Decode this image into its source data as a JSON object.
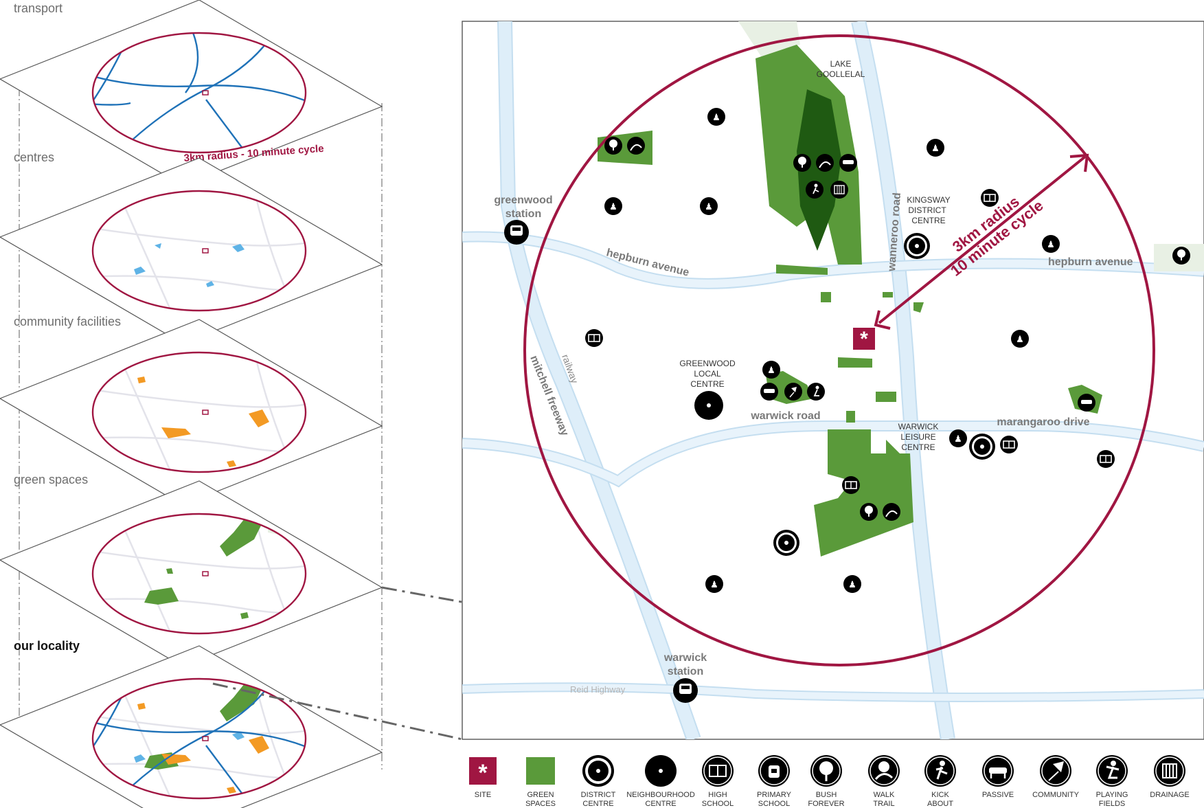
{
  "layers": {
    "transport": "transport",
    "centres": "centres",
    "community": "community facilities",
    "green": "green spaces",
    "locality": "our locality"
  },
  "mini_radius_label": "3km radius  - 10 minute cycle",
  "map": {
    "radius_line1": "3km radius",
    "radius_line2": "10 minute cycle",
    "roads": {
      "hepburn_west": "hepburn avenue",
      "hepburn_east": "hepburn avenue",
      "warwick_road": "warwick road",
      "marangaroo": "marangaroo drive",
      "wanneroo": "wanneroo road",
      "railway": "railway",
      "mitchell": "mitchell freeway",
      "reid": "Reid Highway"
    },
    "places": {
      "lake_1": "LAKE",
      "lake_2": "GOOLLELAL",
      "kingsway_1": "KINGSWAY",
      "kingsway_2": "DISTRICT",
      "kingsway_3": "CENTRE",
      "greenwood_local_1": "GREENWOOD",
      "greenwood_local_2": "LOCAL",
      "greenwood_local_3": "CENTRE",
      "leisure_1": "WARWICK",
      "leisure_2": "LEISURE",
      "leisure_3": "CENTRE",
      "greenwood_station_1": "greenwood",
      "greenwood_station_2": "station",
      "warwick_station_1": "warwick",
      "warwick_station_2": "station"
    }
  },
  "legend": [
    {
      "l1": "SITE",
      "l2": "",
      "icon": "site-icon"
    },
    {
      "l1": "GREEN",
      "l2": "SPACES",
      "icon": "green-space-icon"
    },
    {
      "l1": "DISTRICT",
      "l2": "CENTRE",
      "icon": "district-centre-icon"
    },
    {
      "l1": "NEIGHBOURHOOD",
      "l2": "CENTRE",
      "icon": "neighbourhood-centre-icon"
    },
    {
      "l1": "HIGH",
      "l2": "SCHOOL",
      "icon": "high-school-icon"
    },
    {
      "l1": "PRIMARY",
      "l2": "SCHOOL",
      "icon": "primary-school-icon"
    },
    {
      "l1": "BUSH",
      "l2": "FOREVER",
      "icon": "bush-forever-icon"
    },
    {
      "l1": "WALK",
      "l2": "TRAIL",
      "icon": "walk-trail-icon"
    },
    {
      "l1": "KICK",
      "l2": "ABOUT",
      "icon": "kick-about-icon"
    },
    {
      "l1": "PASSIVE",
      "l2": "",
      "icon": "passive-icon"
    },
    {
      "l1": "COMMUNITY",
      "l2": "",
      "icon": "community-icon"
    },
    {
      "l1": "PLAYING",
      "l2": "FIELDS",
      "icon": "playing-fields-icon"
    },
    {
      "l1": "DRAINAGE",
      "l2": "",
      "icon": "drainage-icon"
    }
  ],
  "colors": {
    "accent": "#a01642",
    "green": "#5a9a3a",
    "dark_green": "#1f5a12",
    "water": "#deeef9",
    "transport": "#1f72b8",
    "centre_blue": "#5fb3e6",
    "community_orange": "#f39a24"
  }
}
